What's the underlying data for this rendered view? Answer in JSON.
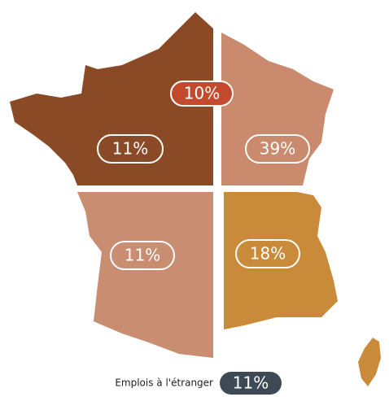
{
  "regions": {
    "values": [
      10,
      11,
      39,
      11,
      18
    ],
    "value_labels": [
      "10%",
      "11%",
      "39%",
      "11%",
      "18%"
    ],
    "colors": [
      "#c44a2e",
      "#8b4a26",
      "#c98a6e",
      "#c98e72",
      "#c98b3a"
    ]
  },
  "abroad": {
    "label": "Emplois à l'étranger",
    "value": 11,
    "value_label": "11%",
    "color": "#3d4a55"
  }
}
